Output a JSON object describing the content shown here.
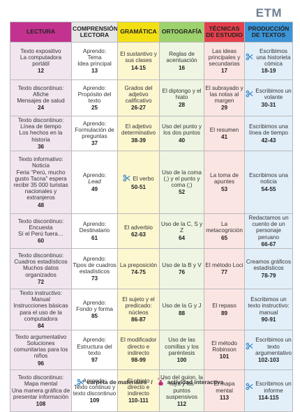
{
  "logo": {
    "text": "ETM"
  },
  "headers": {
    "lectura": "LECTURA",
    "comprension": "COMPRENSIÓN LECTORA",
    "gramatica": "GRAMÁTICA",
    "ortografia": "ORTOGRAFÍA",
    "tecnicas": "TÉCNICAS DE ESTUDIO",
    "produccion": "PRODUCCIÓN DE TEXTOS"
  },
  "rows": [
    {
      "lectura": {
        "text": "Texto expositivo\nLa computadora portátil",
        "page": "12"
      },
      "comprension": {
        "text": "Aprendo:\nTema\nIdea principal",
        "page": "13"
      },
      "gramatica": {
        "text": "El sustantivo y sus clases",
        "page": "14-15"
      },
      "ortografia": {
        "text": "Reglas de acentuación",
        "page": "16"
      },
      "tecnicas": {
        "text": "Las ideas principales y secundarias",
        "page": "17"
      },
      "produccion": {
        "text": "Escribimos una historieta cómica",
        "page": "18-19",
        "icon": "scissors"
      }
    },
    {
      "lectura": {
        "text": "Texto discontinuo:\nAfiche\nMensajes de salud",
        "page": "24"
      },
      "comprension": {
        "text": "Aprendo:\nPropósito del texto",
        "page": "25"
      },
      "gramatica": {
        "text": "Grados del adjetivo calificativo",
        "page": "26-27"
      },
      "ortografia": {
        "text": "El diptongo y el hiato",
        "page": "28"
      },
      "tecnicas": {
        "text": "El subrayado y las notas al margen",
        "page": "29"
      },
      "produccion": {
        "text": "Escribimos un volante",
        "page": "30-31",
        "icon": "scissors"
      }
    },
    {
      "lectura": {
        "text": "Texto discontinuo:\nLínea de tiempo\nLos hechos en la historia",
        "page": "36"
      },
      "comprension": {
        "text": "Aprendo:\nFormulación de preguntas",
        "page": "37"
      },
      "gramatica": {
        "text": "El adjetivo determinativo",
        "page": "38-39"
      },
      "ortografia": {
        "text": "Uso del punto y los dos puntos",
        "page": "40"
      },
      "tecnicas": {
        "text": "El resumen",
        "page": "41"
      },
      "produccion": {
        "text": "Escribimos una línea de tiempo",
        "page": "42-43"
      }
    },
    {
      "lectura": {
        "text": "Texto informativo:\nNoticia\nFeria “Perú, mucho gusto Tacna” espera recibir 35 000 turistas nacionales y extranjeros",
        "page": "48"
      },
      "comprension": {
        "text": "Aprendo:",
        "text_em": "Lead",
        "page": "49"
      },
      "gramatica": {
        "text": "El verbo",
        "page": "50-51",
        "icon": "scissors"
      },
      "ortografia": {
        "text": "Uso de la coma (,) y el punto y coma (;)",
        "page": "52"
      },
      "tecnicas": {
        "text": "La toma de apuntes",
        "page": "53"
      },
      "produccion": {
        "text": "Escribimos una noticia",
        "page": "54-55"
      }
    },
    {
      "lectura": {
        "text": "Texto discontinuo:\nEncuesta\nSí el Perú fuera…",
        "page": "60"
      },
      "comprension": {
        "text": "Aprendo:\nDestinatario",
        "page": "61"
      },
      "gramatica": {
        "text": "El adverbio",
        "page": "62-63"
      },
      "ortografia": {
        "text": "Uso de la C, S y Z",
        "page": "64"
      },
      "tecnicas": {
        "text": "La metacognición",
        "page": "65"
      },
      "produccion": {
        "text": "Redactamos un cuento de un personaje peruano",
        "page": "66-67"
      }
    },
    {
      "lectura": {
        "text": "Texto discontinuo:\nCuadros estadísticos\nMuchos datos organizados",
        "page": "72"
      },
      "comprension": {
        "text": "Aprendo:\nTipos de cuadros estadísticos",
        "page": "73"
      },
      "gramatica": {
        "text": "La preposición",
        "page": "74-75"
      },
      "ortografia": {
        "text": "Uso de la B y V",
        "page": "76"
      },
      "tecnicas": {
        "text": "El método Loci",
        "page": "77"
      },
      "produccion": {
        "text": "Creamos gráficos estadísticos",
        "page": "78-79"
      }
    },
    {
      "lectura": {
        "text": "Texto instructivo:\nManual\nInstrucciones básicas para el uso de la computadora",
        "page": "84"
      },
      "comprension": {
        "text": "Aprendo:\nFondo y forma",
        "page": "85"
      },
      "gramatica": {
        "text": "El sujeto y el predicado: núcleos",
        "page": "86-87"
      },
      "ortografia": {
        "text": "Uso de la G y J",
        "page": "88"
      },
      "tecnicas": {
        "text": "El repaso",
        "page": "89"
      },
      "produccion": {
        "text": "Escribimos un texto instructivo: manual",
        "page": "90-91"
      }
    },
    {
      "lectura": {
        "text": "Texto argumentativo\nSoluciones comunitarias para los niños",
        "page": "96"
      },
      "comprension": {
        "text": "Aprendo:\nEstructura del texto",
        "page": "97"
      },
      "gramatica": {
        "text": "El modificador directo e indirecto",
        "page": "98-99"
      },
      "ortografia": {
        "text": "Uso de las comillas y los paréntesis",
        "page": "100"
      },
      "tecnicas": {
        "text": "El método Robinson",
        "page": "101"
      },
      "produccion": {
        "text": "Escribimos un texto argumentativo",
        "page": "102-103",
        "icon": "scissors"
      }
    },
    {
      "lectura": {
        "text": "Texto discontinuo:\nMapa mental\nUna manera gráfica de presentar información",
        "page": "108"
      },
      "comprension": {
        "text": "Aprendo:\nTexto continuo y texto discontinuo",
        "page": "109"
      },
      "gramatica": {
        "text": "El objeto directo e indirecto",
        "page": "110-111"
      },
      "ortografia": {
        "text": "Uso del guion, la raya y los puntos suspensivos",
        "page": "112"
      },
      "tecnicas": {
        "text": "El mapa mental",
        "page": "113"
      },
      "produccion": {
        "text": "Escribimos un informe",
        "page": "114-115",
        "icon": "scissors"
      }
    }
  ],
  "legend": {
    "materials_label": "carpeta de materiales",
    "separator": "/",
    "interactive_label": "actividad interactiva"
  },
  "colors": {
    "lectura": "#c3328f",
    "gramatica": "#f3e012",
    "ortografia": "#9ed26d",
    "tecnicas": "#e43f4c",
    "produccion": "#3c95d8",
    "scissors_icon": "#2e7fc7",
    "interactive_icon": "#c22a7b"
  }
}
